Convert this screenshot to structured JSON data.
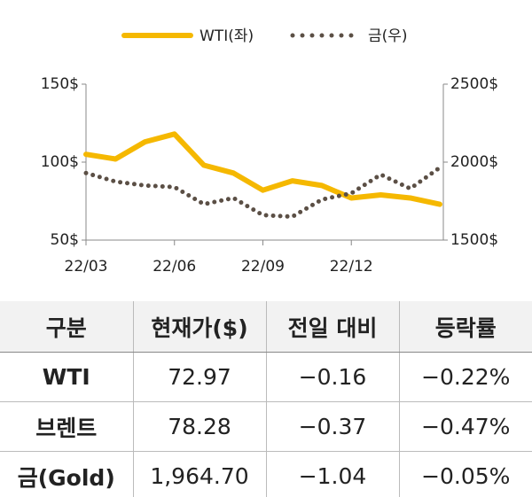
{
  "chart_data": {
    "type": "line",
    "categories": [
      "22/03",
      null,
      null,
      "22/06",
      null,
      null,
      "22/09",
      null,
      null,
      "22/12",
      null,
      null,
      null
    ],
    "series": [
      {
        "name": "WTI(좌)",
        "color": "#f5b800",
        "values": [
          105,
          102,
          113,
          118,
          98,
          93,
          82,
          88,
          85,
          77,
          79,
          77,
          72.97
        ]
      },
      {
        "name": "금(우)",
        "color": "#5b4f45",
        "axis": "y2",
        "values": [
          1930,
          1875,
          1850,
          1840,
          1730,
          1770,
          1660,
          1650,
          1760,
          1800,
          1920,
          1830,
          1964.7
        ]
      }
    ],
    "ylim": [
      50,
      150
    ],
    "yticks": [
      {
        "value": 50,
        "label": "50$"
      },
      {
        "value": 100,
        "label": "100$"
      },
      {
        "value": 150,
        "label": "150$"
      }
    ],
    "y2lim": [
      1500,
      2500
    ],
    "y2ticks": [
      {
        "value": 1500,
        "label": "1500$"
      },
      {
        "value": 2000,
        "label": "2000$"
      },
      {
        "value": 2500,
        "label": "2500$"
      }
    ],
    "legend": "top"
  },
  "table": {
    "header": [
      "구분",
      "현재가($)",
      "전일 대비",
      "등락률"
    ],
    "rows": [
      [
        "WTI",
        "72.97",
        "−0.16",
        "−0.22%"
      ],
      [
        "브렌트",
        "78.28",
        "−0.37",
        "−0.47%"
      ],
      [
        "금(Gold)",
        "1,964.70",
        "−1.04",
        "−0.05%"
      ]
    ]
  }
}
